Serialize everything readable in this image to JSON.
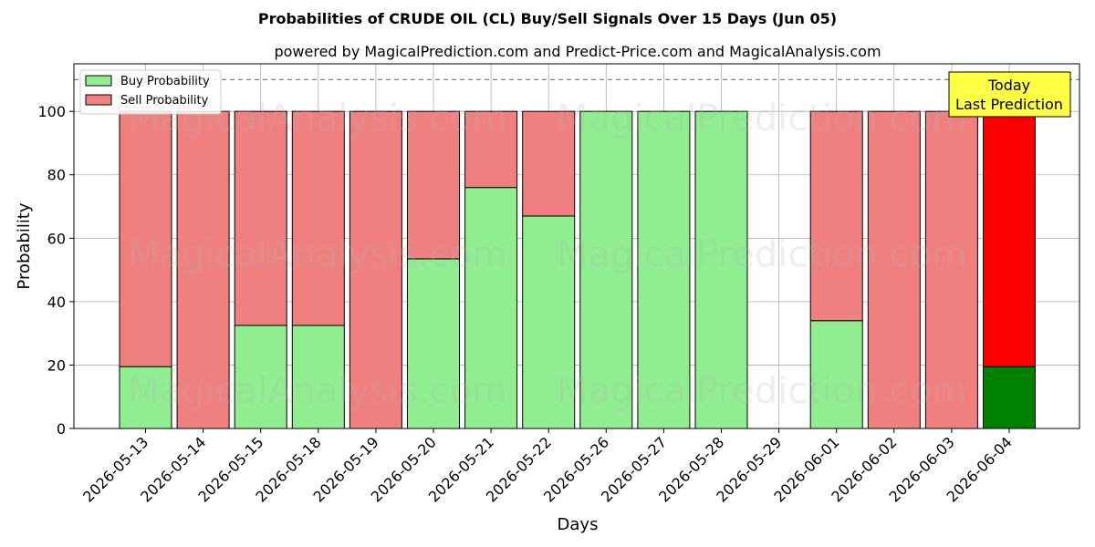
{
  "chart_data": {
    "type": "bar",
    "title": "Probabilities of CRUDE OIL (CL) Buy/Sell Signals Over 15 Days (Jun 05)",
    "subtitle": "powered by MagicalPrediction.com and Predict-Price.com and MagicalAnalysis.com",
    "xlabel": "Days",
    "ylabel": "Probability",
    "ylim": [
      0,
      115
    ],
    "yticks": [
      0,
      20,
      40,
      60,
      80,
      100
    ],
    "grid": true,
    "stacked": true,
    "legend_position": "top-left",
    "categories": [
      "2026-05-13",
      "2026-05-14",
      "2026-05-15",
      "2026-05-18",
      "2026-05-19",
      "2026-05-20",
      "2026-05-21",
      "2026-05-22",
      "2026-05-26",
      "2026-05-27",
      "2026-05-28",
      "2026-05-29",
      "2026-06-01",
      "2026-06-02",
      "2026-06-03",
      "2026-06-04"
    ],
    "series": [
      {
        "name": "Buy Probability",
        "color": "#90ee90",
        "values": [
          19.5,
          0,
          32.5,
          32.5,
          0,
          53.5,
          76,
          67,
          100,
          100,
          100,
          null,
          34,
          0,
          0,
          19.5
        ]
      },
      {
        "name": "Sell Probability",
        "color": "#f08080",
        "values": [
          80.5,
          100,
          67.5,
          67.5,
          100,
          46.5,
          24,
          33,
          0,
          0,
          0,
          null,
          66,
          100,
          100,
          80.5
        ]
      }
    ],
    "highlight": {
      "category": "2026-06-04",
      "buy_color": "#008000",
      "sell_color": "#ff0000"
    },
    "reference_line": {
      "y": 110,
      "style": "dashed",
      "color": "#808080"
    },
    "annotation": {
      "lines": [
        "Today",
        "Last Prediction"
      ],
      "background": "#ffff44"
    },
    "watermarks": [
      "MagicalAnalysis.com",
      "MagicalPrediction.com"
    ]
  }
}
